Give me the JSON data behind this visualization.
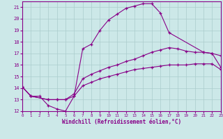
{
  "xlabel": "Windchill (Refroidissement éolien,°C)",
  "bg_color": "#cce8e8",
  "line_color": "#880088",
  "grid_color": "#aacccc",
  "xlim": [
    0,
    23
  ],
  "ylim": [
    12,
    21.5
  ],
  "yticks": [
    12,
    13,
    14,
    15,
    16,
    17,
    18,
    19,
    20,
    21
  ],
  "xticks": [
    0,
    1,
    2,
    3,
    4,
    5,
    6,
    7,
    8,
    9,
    10,
    11,
    12,
    13,
    14,
    15,
    16,
    17,
    18,
    19,
    20,
    21,
    22,
    23
  ],
  "series1_x": [
    0,
    1,
    2,
    3,
    4,
    5,
    6,
    7,
    8,
    9,
    10,
    11,
    12,
    13,
    14,
    15,
    16,
    17,
    21,
    22,
    23
  ],
  "series1_y": [
    14.1,
    13.3,
    13.3,
    12.5,
    12.2,
    12.0,
    13.3,
    17.4,
    17.8,
    19.0,
    19.9,
    20.4,
    20.9,
    21.1,
    21.3,
    21.3,
    20.5,
    18.8,
    17.1,
    17.0,
    16.8
  ],
  "series2_x": [
    0,
    1,
    3,
    4,
    5,
    6,
    7,
    8,
    9,
    10,
    11,
    12,
    13,
    14,
    15,
    16,
    17,
    18,
    19,
    20,
    21,
    22,
    23
  ],
  "series2_y": [
    14.1,
    13.3,
    13.0,
    13.0,
    13.0,
    13.5,
    14.8,
    15.2,
    15.5,
    15.8,
    16.0,
    16.3,
    16.5,
    16.8,
    17.1,
    17.3,
    17.5,
    17.4,
    17.2,
    17.1,
    17.1,
    17.0,
    15.8
  ],
  "series3_x": [
    0,
    1,
    3,
    4,
    5,
    6,
    7,
    8,
    9,
    10,
    11,
    12,
    13,
    14,
    15,
    16,
    17,
    18,
    19,
    20,
    21,
    22,
    23
  ],
  "series3_y": [
    14.1,
    13.3,
    13.0,
    13.0,
    13.0,
    13.3,
    14.2,
    14.5,
    14.8,
    15.0,
    15.2,
    15.4,
    15.6,
    15.7,
    15.8,
    15.9,
    16.0,
    16.0,
    16.0,
    16.1,
    16.1,
    16.1,
    15.6
  ]
}
